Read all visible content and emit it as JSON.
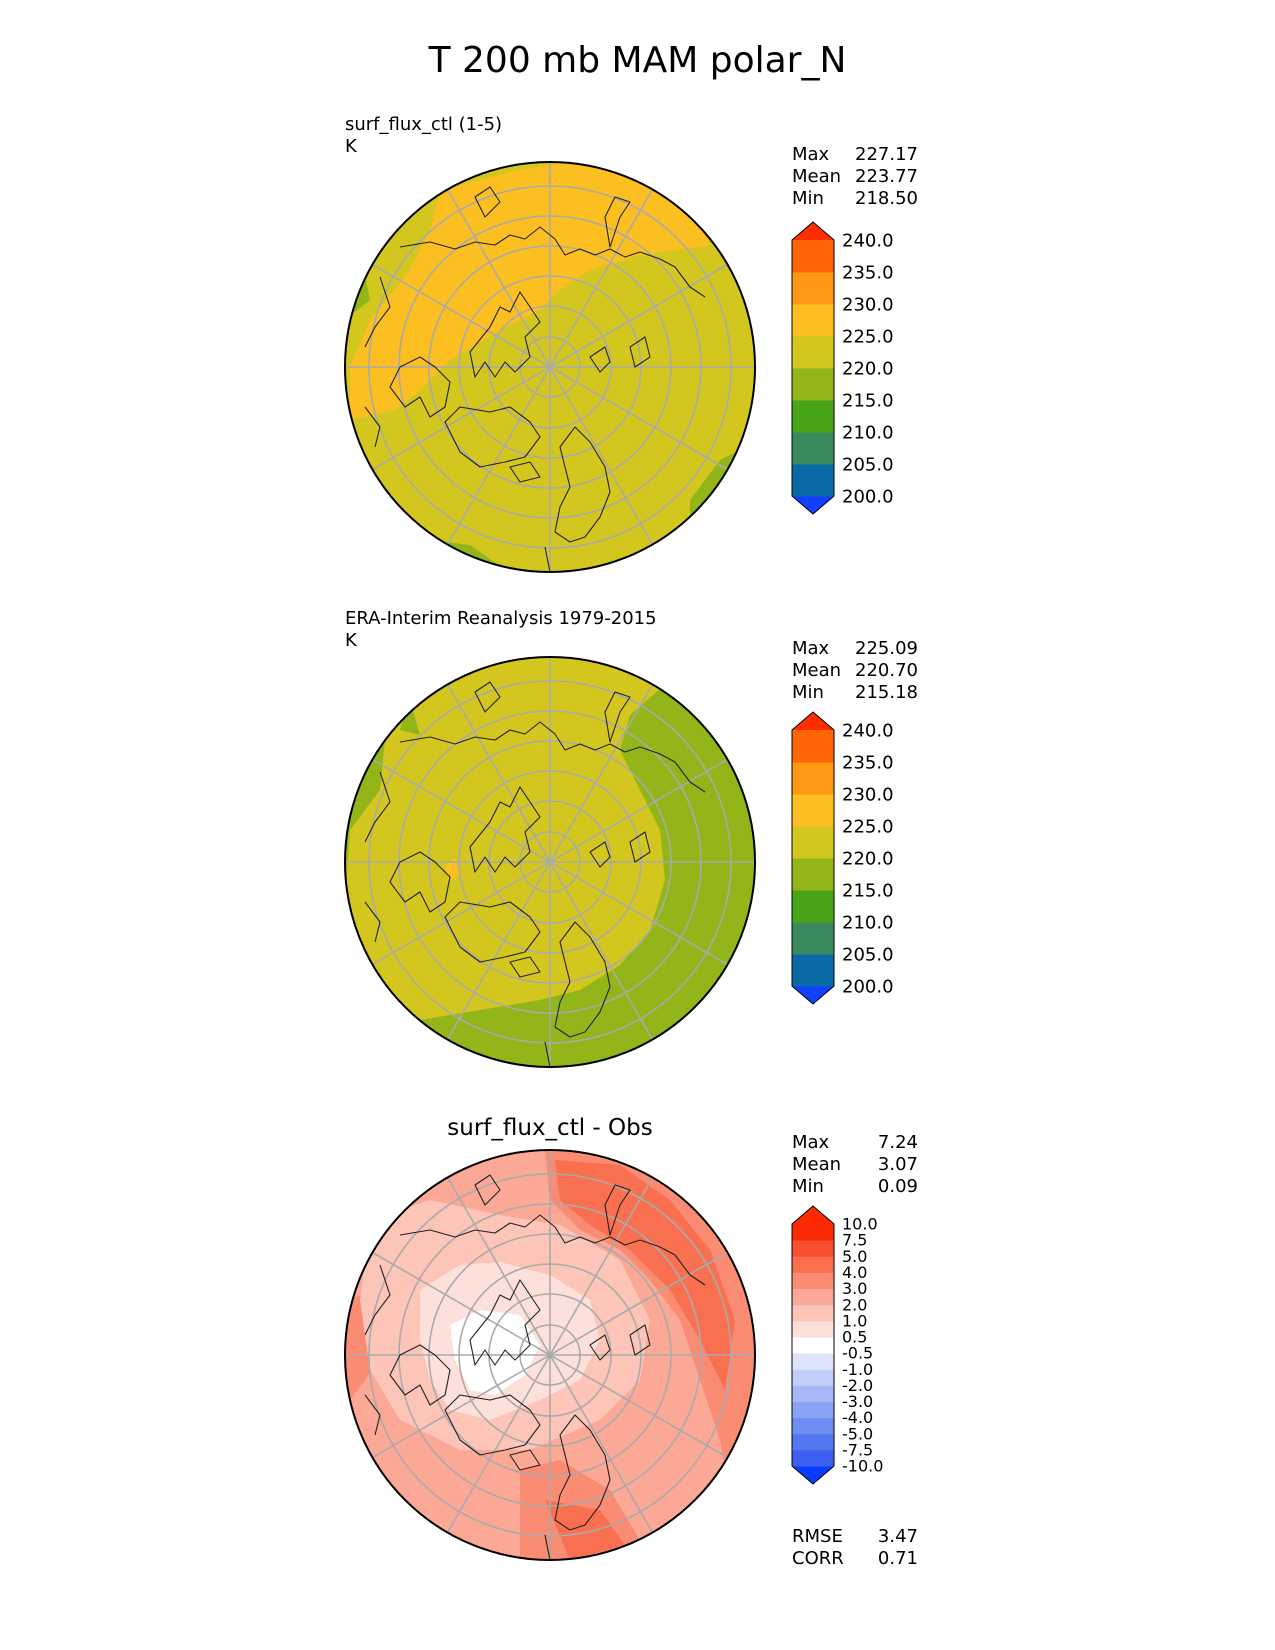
{
  "figure": {
    "title": "T 200 mb MAM polar_N"
  },
  "panels": [
    {
      "id": "test",
      "title_line1": "surf_flux_ctl (1-5)",
      "title_line2": "K",
      "center_title": "",
      "stats": [
        {
          "label": "Max",
          "value": "227.17"
        },
        {
          "label": "Mean",
          "value": "223.77"
        },
        {
          "label": "Min",
          "value": "218.50"
        }
      ],
      "colorbar_ticks": [
        "240.0",
        "235.0",
        "230.0",
        "225.0",
        "220.0",
        "215.0",
        "210.0",
        "205.0",
        "200.0"
      ]
    },
    {
      "id": "ref",
      "title_line1": "ERA-Interim Reanalysis 1979-2015",
      "title_line2": "K",
      "center_title": "",
      "stats": [
        {
          "label": "Max",
          "value": "225.09"
        },
        {
          "label": "Mean",
          "value": "220.70"
        },
        {
          "label": "Min",
          "value": "215.18"
        }
      ],
      "colorbar_ticks": [
        "240.0",
        "235.0",
        "230.0",
        "225.0",
        "220.0",
        "215.0",
        "210.0",
        "205.0",
        "200.0"
      ]
    },
    {
      "id": "diff",
      "title_line1": "",
      "title_line2": "",
      "center_title": "surf_flux_ctl - Obs",
      "stats": [
        {
          "label": "Max",
          "value": "7.24"
        },
        {
          "label": "Mean",
          "value": "3.07"
        },
        {
          "label": "Min",
          "value": "0.09"
        }
      ],
      "colorbar_ticks": [
        "10.0",
        "7.5",
        "5.0",
        "4.0",
        "3.0",
        "2.0",
        "1.0",
        "0.5",
        "-0.5",
        "-1.0",
        "-2.0",
        "-3.0",
        "-4.0",
        "-5.0",
        "-7.5",
        "-10.0"
      ],
      "rmse": {
        "label": "RMSE",
        "value": "3.47"
      },
      "corr": {
        "label": "CORR",
        "value": "0.71"
      }
    }
  ],
  "chart_data": [
    {
      "type": "heatmap",
      "title": "surf_flux_ctl (1-5)",
      "units": "K",
      "projection": "north polar stereographic",
      "field_summary": {
        "max": 227.17,
        "mean": 223.77,
        "min": 218.5
      },
      "colorbar": {
        "levels": [
          200,
          205,
          210,
          215,
          220,
          225,
          230,
          235,
          240
        ],
        "extend": "both",
        "colors": [
          "#1240ff",
          "#0a6aa8",
          "#3b8a5e",
          "#4aa417",
          "#92b619",
          "#d3c61f",
          "#fcbf22",
          "#fd9714",
          "#fd6506",
          "#fd2f02"
        ]
      }
    },
    {
      "type": "heatmap",
      "title": "ERA-Interim Reanalysis 1979-2015",
      "units": "K",
      "projection": "north polar stereographic",
      "field_summary": {
        "max": 225.09,
        "mean": 220.7,
        "min": 215.18
      },
      "colorbar": {
        "levels": [
          200,
          205,
          210,
          215,
          220,
          225,
          230,
          235,
          240
        ],
        "extend": "both",
        "colors": [
          "#1240ff",
          "#0a6aa8",
          "#3b8a5e",
          "#4aa417",
          "#92b619",
          "#d3c61f",
          "#fcbf22",
          "#fd9714",
          "#fd6506",
          "#fd2f02"
        ]
      }
    },
    {
      "type": "heatmap",
      "title": "surf_flux_ctl - Obs",
      "projection": "north polar stereographic",
      "field_summary": {
        "max": 7.24,
        "mean": 3.07,
        "min": 0.09,
        "rmse": 3.47,
        "corr": 0.71
      },
      "colorbar": {
        "levels": [
          -10,
          -7.5,
          -5,
          -4,
          -3,
          -2,
          -1,
          -0.5,
          0.5,
          1,
          2,
          3,
          4,
          5,
          7.5,
          10
        ],
        "extend": "both",
        "colors": [
          "#0a3cff",
          "#3d5ff2",
          "#5578f0",
          "#6e8ef2",
          "#8aa3f4",
          "#a6b8f6",
          "#c1cef9",
          "#dde3fb",
          "#ffffff",
          "#fde0da",
          "#fdc4b8",
          "#fca896",
          "#fb8c74",
          "#f97050",
          "#f8502e",
          "#fb2a07",
          "#ff2a00"
        ]
      }
    }
  ]
}
